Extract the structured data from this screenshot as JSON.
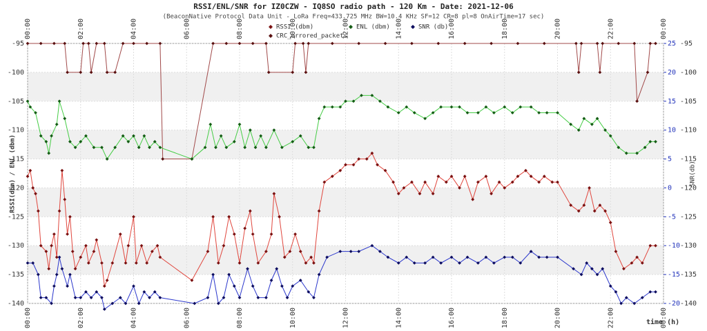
{
  "chart_data": {
    "type": "line",
    "title": "RSSI/ENL/SNR for IZ0CZW - IQ8SO radio path - 120 Km - Date: 2021-12-06",
    "subtitle": "(BeaconNative Protocol Data Unit - LoRa Freq=433.725 MHz BW=10.4 KHz SF=12 CR=8 pl=8 OnAirTime=17 sec)",
    "y_label": "RSSI(dbm) / ENL (dbm)",
    "y2_label": "SNR(db)",
    "x_label": "time (h)",
    "xlim": [
      0,
      24
    ],
    "xticks": [
      {
        "value": 0,
        "label": "00:00"
      },
      {
        "value": 2,
        "label": "02:00"
      },
      {
        "value": 4,
        "label": "04:00"
      },
      {
        "value": 6,
        "label": "06:00"
      },
      {
        "value": 8,
        "label": "08:00"
      },
      {
        "value": 10,
        "label": "10:00"
      },
      {
        "value": 12,
        "label": "12:00"
      },
      {
        "value": 14,
        "label": "14:00"
      },
      {
        "value": 16,
        "label": "16:00"
      },
      {
        "value": 18,
        "label": "18:00"
      },
      {
        "value": 20,
        "label": "20:00"
      },
      {
        "value": 22,
        "label": "22:00"
      },
      {
        "value": 24,
        "label": "00:00"
      }
    ],
    "ylim": [
      -140,
      -95
    ],
    "yticks": [
      -95,
      -100,
      -105,
      -110,
      -115,
      -120,
      -125,
      -130,
      -135,
      -140
    ],
    "y2lim": [
      -20,
      25
    ],
    "y2ticks": [
      25,
      20,
      15,
      10,
      5,
      0,
      -5,
      -10,
      -15,
      -20
    ],
    "grid": true,
    "series": [
      {
        "name": "RSSI (dbm)",
        "color": "#e0453c",
        "marker_color": "#7a1010",
        "x": [
          0.0,
          0.1,
          0.2,
          0.3,
          0.4,
          0.5,
          0.7,
          0.8,
          0.9,
          1.0,
          1.1,
          1.2,
          1.3,
          1.4,
          1.5,
          1.6,
          1.7,
          1.8,
          2.0,
          2.2,
          2.3,
          2.5,
          2.6,
          2.8,
          2.9,
          3.0,
          3.2,
          3.5,
          3.7,
          3.8,
          4.0,
          4.1,
          4.3,
          4.5,
          4.7,
          4.9,
          5.0,
          6.2,
          6.8,
          7.0,
          7.2,
          7.4,
          7.6,
          7.8,
          8.0,
          8.2,
          8.4,
          8.5,
          8.7,
          9.0,
          9.2,
          9.3,
          9.5,
          9.7,
          9.9,
          10.1,
          10.3,
          10.5,
          10.7,
          10.8,
          11.0,
          11.2,
          11.5,
          11.8,
          12.0,
          12.3,
          12.5,
          12.8,
          13.0,
          13.2,
          13.5,
          13.8,
          14.0,
          14.2,
          14.5,
          14.8,
          15.0,
          15.3,
          15.5,
          15.8,
          16.0,
          16.3,
          16.5,
          16.8,
          17.0,
          17.3,
          17.5,
          17.8,
          18.0,
          18.3,
          18.5,
          18.8,
          19.0,
          19.3,
          19.5,
          19.8,
          20.0,
          20.5,
          20.8,
          21.0,
          21.2,
          21.4,
          21.6,
          21.8,
          22.0,
          22.2,
          22.5,
          22.8,
          23.0,
          23.2,
          23.5,
          23.7
        ],
        "values": [
          -118,
          -117,
          -120,
          -121,
          -124,
          -130,
          -131,
          -134,
          -130,
          -128,
          -132,
          -124,
          -117,
          -122,
          -128,
          -125,
          -131,
          -134,
          -132,
          -130,
          -133,
          -131,
          -129,
          -133,
          -137,
          -136,
          -133,
          -128,
          -133,
          -130,
          -125,
          -133,
          -130,
          -133,
          -131,
          -130,
          -132,
          -136,
          -131,
          -125,
          -133,
          -130,
          -125,
          -128,
          -133,
          -127,
          -124,
          -128,
          -133,
          -131,
          -128,
          -121,
          -125,
          -132,
          -131,
          -128,
          -131,
          -133,
          -132,
          -133,
          -124,
          -119,
          -118,
          -117,
          -116,
          -116,
          -115,
          -115,
          -114,
          -116,
          -117,
          -119,
          -121,
          -120,
          -119,
          -121,
          -119,
          -121,
          -118,
          -119,
          -118,
          -120,
          -118,
          -122,
          -119,
          -118,
          -121,
          -119,
          -120,
          -119,
          -118,
          -117,
          -118,
          -119,
          -118,
          -119,
          -119,
          -123,
          -124,
          -123,
          -120,
          -124,
          -123,
          -124,
          -126,
          -131,
          -134,
          -133,
          -132,
          -133,
          -130,
          -130
        ]
      },
      {
        "name": "ENL (dbm)",
        "color": "#44cc44",
        "marker_color": "#145c14",
        "x": [
          0.0,
          0.1,
          0.3,
          0.5,
          0.7,
          0.8,
          0.9,
          1.1,
          1.2,
          1.4,
          1.6,
          1.8,
          2.0,
          2.2,
          2.5,
          2.8,
          3.0,
          3.3,
          3.6,
          3.8,
          4.0,
          4.2,
          4.4,
          4.6,
          4.8,
          5.0,
          6.2,
          6.7,
          6.9,
          7.1,
          7.3,
          7.5,
          7.8,
          8.0,
          8.2,
          8.4,
          8.6,
          8.8,
          9.0,
          9.3,
          9.6,
          10.0,
          10.3,
          10.6,
          10.8,
          11.0,
          11.2,
          11.5,
          11.8,
          12.0,
          12.3,
          12.6,
          13.0,
          13.3,
          13.6,
          14.0,
          14.3,
          14.6,
          15.0,
          15.3,
          15.6,
          16.0,
          16.3,
          16.6,
          17.0,
          17.3,
          17.6,
          18.0,
          18.3,
          18.6,
          19.0,
          19.3,
          19.6,
          20.0,
          20.5,
          20.8,
          21.0,
          21.3,
          21.5,
          21.8,
          22.0,
          22.3,
          22.6,
          23.0,
          23.3,
          23.5,
          23.7
        ],
        "values": [
          -105,
          -106,
          -107,
          -111,
          -112,
          -114,
          -111,
          -109,
          -105,
          -108,
          -112,
          -113,
          -112,
          -111,
          -113,
          -113,
          -115,
          -113,
          -111,
          -112,
          -111,
          -113,
          -111,
          -113,
          -112,
          -113,
          -115,
          -113,
          -109,
          -113,
          -111,
          -113,
          -112,
          -109,
          -113,
          -110,
          -113,
          -111,
          -113,
          -110,
          -113,
          -112,
          -111,
          -113,
          -113,
          -108,
          -106,
          -106,
          -106,
          -105,
          -105,
          -104,
          -104,
          -105,
          -106,
          -107,
          -106,
          -107,
          -108,
          -107,
          -106,
          -106,
          -106,
          -107,
          -107,
          -106,
          -107,
          -106,
          -107,
          -106,
          -106,
          -107,
          -107,
          -107,
          -109,
          -110,
          -108,
          -109,
          -108,
          -110,
          -111,
          -113,
          -114,
          -114,
          -113,
          -112,
          -112
        ]
      },
      {
        "name": "SNR (db)",
        "color": "#2a36cc",
        "marker_color": "#0c0c5e",
        "axis": "y2",
        "x": [
          0.0,
          0.2,
          0.4,
          0.5,
          0.7,
          0.9,
          1.0,
          1.1,
          1.2,
          1.3,
          1.5,
          1.6,
          1.8,
          2.0,
          2.2,
          2.4,
          2.6,
          2.8,
          2.9,
          3.2,
          3.5,
          3.7,
          4.0,
          4.2,
          4.4,
          4.6,
          4.8,
          5.0,
          6.3,
          6.8,
          7.0,
          7.2,
          7.4,
          7.6,
          7.8,
          8.0,
          8.3,
          8.5,
          8.7,
          9.0,
          9.2,
          9.4,
          9.6,
          9.8,
          10.0,
          10.3,
          10.6,
          10.8,
          11.0,
          11.3,
          11.8,
          12.2,
          12.5,
          13.0,
          13.3,
          13.6,
          14.0,
          14.3,
          14.6,
          15.0,
          15.3,
          15.6,
          16.0,
          16.3,
          16.6,
          17.0,
          17.3,
          17.6,
          18.0,
          18.3,
          18.6,
          19.0,
          19.3,
          19.6,
          20.0,
          20.6,
          20.9,
          21.1,
          21.3,
          21.5,
          21.7,
          22.0,
          22.2,
          22.4,
          22.6,
          22.9,
          23.2,
          23.5,
          23.7
        ],
        "values": [
          -13,
          -13,
          -15,
          -19,
          -19,
          -20,
          -17,
          -15,
          -12,
          -14,
          -17,
          -15,
          -19,
          -19,
          -18,
          -19,
          -18,
          -19,
          -21,
          -20,
          -19,
          -20,
          -17,
          -20,
          -18,
          -19,
          -18,
          -19,
          -20,
          -19,
          -15,
          -20,
          -19,
          -15,
          -17,
          -19,
          -14,
          -17,
          -19,
          -19,
          -16,
          -14,
          -17,
          -19,
          -17,
          -16,
          -18,
          -19,
          -15,
          -12,
          -11,
          -11,
          -11,
          -10,
          -11,
          -12,
          -13,
          -12,
          -13,
          -13,
          -12,
          -13,
          -12,
          -13,
          -12,
          -13,
          -12,
          -13,
          -12,
          -12,
          -13,
          -11,
          -12,
          -12,
          -12,
          -14,
          -15,
          -13,
          -14,
          -15,
          -14,
          -17,
          -18,
          -20,
          -19,
          -20,
          -19,
          -18,
          -18
        ]
      },
      {
        "name": "CRC_errored_packets",
        "color": "#a04848",
        "marker_color": "#5a1010",
        "x": [
          0.0,
          0.5,
          1.0,
          1.4,
          1.5,
          2.0,
          2.1,
          2.3,
          2.4,
          2.6,
          2.9,
          3.0,
          3.3,
          3.6,
          4.0,
          4.5,
          5.0,
          5.1,
          6.2,
          7.0,
          7.5,
          8.0,
          8.5,
          9.0,
          9.1,
          10.0,
          10.1,
          10.4,
          10.5,
          10.6,
          11.5,
          12.5,
          13.5,
          14.5,
          15.5,
          16.5,
          17.5,
          18.5,
          19.5,
          20.7,
          20.8,
          20.9,
          21.5,
          21.6,
          21.7,
          22.3,
          22.9,
          23.0,
          23.4,
          23.5,
          23.7
        ],
        "values": [
          -95,
          -95,
          -95,
          -95,
          -100,
          -100,
          -95,
          -95,
          -100,
          -95,
          -95,
          -100,
          -100,
          -95,
          -95,
          -95,
          -95,
          -115,
          -115,
          -95,
          -95,
          -95,
          -95,
          -95,
          -100,
          -100,
          -95,
          -95,
          -100,
          -95,
          -95,
          -95,
          -95,
          -95,
          -95,
          -95,
          -95,
          -95,
          -95,
          -95,
          -100,
          -95,
          -95,
          -100,
          -95,
          -95,
          -95,
          -105,
          -100,
          -95,
          -95
        ]
      }
    ]
  }
}
